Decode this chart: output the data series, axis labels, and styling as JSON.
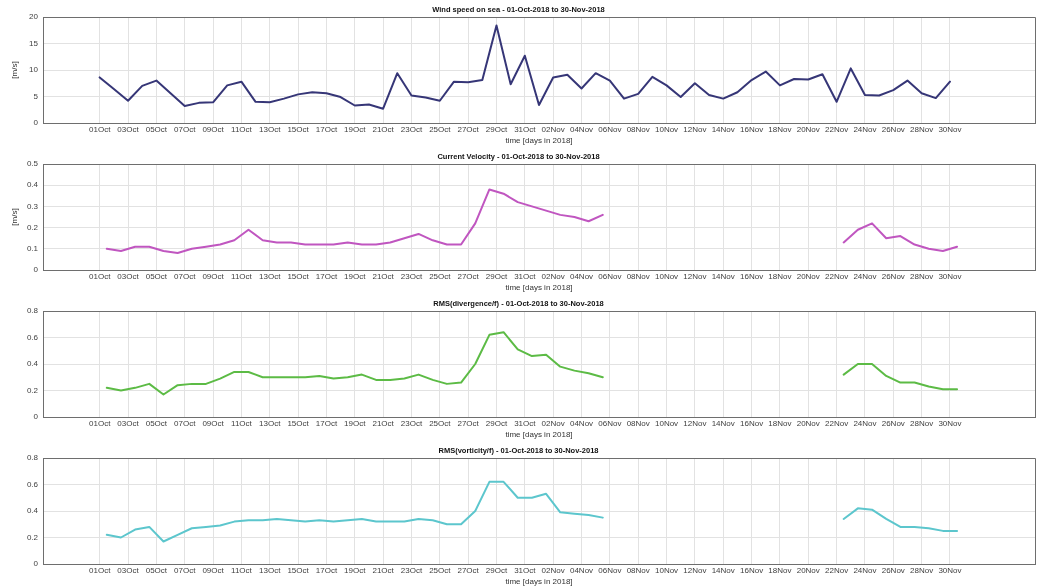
{
  "chart_data": [
    {
      "type": "line",
      "title": "Wind speed on sea - 01-Oct-2018 to 30-Nov-2018",
      "xlabel": "time [days in 2018]",
      "ylabel": "[m/s]",
      "grid": true,
      "x": [
        "2018-10-01",
        "2018-10-02",
        "2018-10-03",
        "2018-10-04",
        "2018-10-05",
        "2018-10-06",
        "2018-10-07",
        "2018-10-08",
        "2018-10-09",
        "2018-10-10",
        "2018-10-11",
        "2018-10-12",
        "2018-10-13",
        "2018-10-14",
        "2018-10-15",
        "2018-10-16",
        "2018-10-17",
        "2018-10-18",
        "2018-10-19",
        "2018-10-20",
        "2018-10-21",
        "2018-10-22",
        "2018-10-23",
        "2018-10-24",
        "2018-10-25",
        "2018-10-26",
        "2018-10-27",
        "2018-10-28",
        "2018-10-29",
        "2018-10-30",
        "2018-10-31",
        "2018-11-01",
        "2018-11-02",
        "2018-11-03",
        "2018-11-04",
        "2018-11-05",
        "2018-11-06",
        "2018-11-07",
        "2018-11-08",
        "2018-11-09",
        "2018-11-10",
        "2018-11-11",
        "2018-11-12",
        "2018-11-13",
        "2018-11-14",
        "2018-11-15",
        "2018-11-16",
        "2018-11-17",
        "2018-11-18",
        "2018-11-19",
        "2018-11-20",
        "2018-11-21",
        "2018-11-22",
        "2018-11-23",
        "2018-11-24",
        "2018-11-25",
        "2018-11-26",
        "2018-11-27",
        "2018-11-28",
        "2018-11-29",
        "2018-11-30"
      ],
      "series": [
        {
          "color": "#363677",
          "values": [
            8.6,
            6.4,
            4.2,
            7.0,
            8.0,
            5.6,
            3.2,
            3.8,
            3.9,
            7.1,
            7.8,
            4.0,
            3.9,
            4.6,
            5.4,
            5.8,
            5.6,
            4.9,
            3.3,
            3.5,
            2.7,
            9.4,
            5.2,
            4.8,
            4.2,
            7.8,
            7.7,
            8.1,
            18.4,
            7.3,
            12.7,
            3.4,
            8.6,
            9.1,
            6.5,
            9.4,
            8.0,
            4.6,
            5.5,
            8.7,
            7.1,
            4.9,
            7.5,
            5.3,
            4.6,
            5.8,
            8.1,
            9.7,
            7.1,
            8.3,
            8.2,
            9.2,
            4.0,
            10.3,
            5.3,
            5.2,
            6.2,
            8.0,
            5.6,
            4.7,
            7.8
          ]
        }
      ],
      "xlim": [
        "2018-09-27",
        "2018-12-06"
      ],
      "xticks": [
        {
          "value": "2018-10-01",
          "label": "01Oct"
        },
        {
          "value": "2018-10-03",
          "label": "03Oct"
        },
        {
          "value": "2018-10-05",
          "label": "05Oct"
        },
        {
          "value": "2018-10-07",
          "label": "07Oct"
        },
        {
          "value": "2018-10-09",
          "label": "09Oct"
        },
        {
          "value": "2018-10-11",
          "label": "11Oct"
        },
        {
          "value": "2018-10-13",
          "label": "13Oct"
        },
        {
          "value": "2018-10-15",
          "label": "15Oct"
        },
        {
          "value": "2018-10-17",
          "label": "17Oct"
        },
        {
          "value": "2018-10-19",
          "label": "19Oct"
        },
        {
          "value": "2018-10-21",
          "label": "21Oct"
        },
        {
          "value": "2018-10-23",
          "label": "23Oct"
        },
        {
          "value": "2018-10-25",
          "label": "25Oct"
        },
        {
          "value": "2018-10-27",
          "label": "27Oct"
        },
        {
          "value": "2018-10-29",
          "label": "29Oct"
        },
        {
          "value": "2018-10-31",
          "label": "31Oct"
        },
        {
          "value": "2018-11-02",
          "label": "02Nov"
        },
        {
          "value": "2018-11-04",
          "label": "04Nov"
        },
        {
          "value": "2018-11-06",
          "label": "06Nov"
        },
        {
          "value": "2018-11-08",
          "label": "08Nov"
        },
        {
          "value": "2018-11-10",
          "label": "10Nov"
        },
        {
          "value": "2018-11-12",
          "label": "12Nov"
        },
        {
          "value": "2018-11-14",
          "label": "14Nov"
        },
        {
          "value": "2018-11-16",
          "label": "16Nov"
        },
        {
          "value": "2018-11-18",
          "label": "18Nov"
        },
        {
          "value": "2018-11-20",
          "label": "20Nov"
        },
        {
          "value": "2018-11-22",
          "label": "22Nov"
        },
        {
          "value": "2018-11-24",
          "label": "24Nov"
        },
        {
          "value": "2018-11-26",
          "label": "26Nov"
        },
        {
          "value": "2018-11-28",
          "label": "28Nov"
        },
        {
          "value": "2018-11-30",
          "label": "30Nov"
        }
      ],
      "ylim": [
        0,
        20
      ],
      "yticks": [
        0,
        5,
        10,
        15,
        20
      ]
    },
    {
      "type": "line",
      "title": "Current Velocity - 01-Oct-2018 to 30-Nov-2018",
      "xlabel": "time [days in 2018]",
      "ylabel": "[m/s]",
      "grid": true,
      "x": [
        "2018-10-01T12:00",
        "2018-10-02T12:00",
        "2018-10-03T12:00",
        "2018-10-04T12:00",
        "2018-10-05T12:00",
        "2018-10-06T12:00",
        "2018-10-07T12:00",
        "2018-10-08T12:00",
        "2018-10-09T12:00",
        "2018-10-10T12:00",
        "2018-10-11T12:00",
        "2018-10-12T12:00",
        "2018-10-13T12:00",
        "2018-10-14T12:00",
        "2018-10-15T12:00",
        "2018-10-16T12:00",
        "2018-10-17T12:00",
        "2018-10-18T12:00",
        "2018-10-19T12:00",
        "2018-10-20T12:00",
        "2018-10-21T12:00",
        "2018-10-22T12:00",
        "2018-10-23T12:00",
        "2018-10-24T12:00",
        "2018-10-25T12:00",
        "2018-10-26T12:00",
        "2018-10-27T12:00",
        "2018-10-28T12:00",
        "2018-10-29T12:00",
        "2018-10-30T12:00",
        "2018-10-31T12:00",
        "2018-11-01T12:00",
        "2018-11-02T12:00",
        "2018-11-03T12:00",
        "2018-11-04T12:00",
        "2018-11-05T12:00",
        "2018-11-06T12:00",
        "2018-11-07T12:00",
        "2018-11-08T12:00",
        "2018-11-09T12:00",
        "2018-11-10T12:00",
        "2018-11-11T12:00",
        "2018-11-12T12:00",
        "2018-11-13T12:00",
        "2018-11-14T12:00",
        "2018-11-15T12:00",
        "2018-11-16T12:00",
        "2018-11-17T12:00",
        "2018-11-18T12:00",
        "2018-11-19T12:00",
        "2018-11-20T12:00",
        "2018-11-21T12:00",
        "2018-11-22T12:00",
        "2018-11-23T12:00",
        "2018-11-24T12:00",
        "2018-11-25T12:00",
        "2018-11-26T12:00",
        "2018-11-27T12:00",
        "2018-11-28T12:00",
        "2018-11-29T12:00",
        "2018-11-30T12:00"
      ],
      "series": [
        {
          "color": "#c056c0",
          "values": [
            0.1,
            0.09,
            0.11,
            0.11,
            0.09,
            0.08,
            0.1,
            0.11,
            0.12,
            0.14,
            0.19,
            0.14,
            0.13,
            0.13,
            0.12,
            0.12,
            0.12,
            0.13,
            0.12,
            0.12,
            0.13,
            0.15,
            0.17,
            0.14,
            0.12,
            0.12,
            0.22,
            0.38,
            0.36,
            0.32,
            0.3,
            0.28,
            0.26,
            0.25,
            0.23,
            0.26,
            null,
            null,
            null,
            null,
            null,
            null,
            null,
            null,
            null,
            null,
            null,
            null,
            null,
            null,
            null,
            null,
            0.13,
            0.19,
            0.22,
            0.15,
            0.16,
            0.12,
            0.1,
            0.09,
            0.11
          ]
        }
      ],
      "xlim": [
        "2018-09-27",
        "2018-12-06"
      ],
      "xticks": [
        {
          "value": "2018-10-01",
          "label": "01Oct"
        },
        {
          "value": "2018-10-03",
          "label": "03Oct"
        },
        {
          "value": "2018-10-05",
          "label": "05Oct"
        },
        {
          "value": "2018-10-07",
          "label": "07Oct"
        },
        {
          "value": "2018-10-09",
          "label": "09Oct"
        },
        {
          "value": "2018-10-11",
          "label": "11Oct"
        },
        {
          "value": "2018-10-13",
          "label": "13Oct"
        },
        {
          "value": "2018-10-15",
          "label": "15Oct"
        },
        {
          "value": "2018-10-17",
          "label": "17Oct"
        },
        {
          "value": "2018-10-19",
          "label": "19Oct"
        },
        {
          "value": "2018-10-21",
          "label": "21Oct"
        },
        {
          "value": "2018-10-23",
          "label": "23Oct"
        },
        {
          "value": "2018-10-25",
          "label": "25Oct"
        },
        {
          "value": "2018-10-27",
          "label": "27Oct"
        },
        {
          "value": "2018-10-29",
          "label": "29Oct"
        },
        {
          "value": "2018-10-31",
          "label": "31Oct"
        },
        {
          "value": "2018-11-02",
          "label": "02Nov"
        },
        {
          "value": "2018-11-04",
          "label": "04Nov"
        },
        {
          "value": "2018-11-06",
          "label": "06Nov"
        },
        {
          "value": "2018-11-08",
          "label": "08Nov"
        },
        {
          "value": "2018-11-10",
          "label": "10Nov"
        },
        {
          "value": "2018-11-12",
          "label": "12Nov"
        },
        {
          "value": "2018-11-14",
          "label": "14Nov"
        },
        {
          "value": "2018-11-16",
          "label": "16Nov"
        },
        {
          "value": "2018-11-18",
          "label": "18Nov"
        },
        {
          "value": "2018-11-20",
          "label": "20Nov"
        },
        {
          "value": "2018-11-22",
          "label": "22Nov"
        },
        {
          "value": "2018-11-24",
          "label": "24Nov"
        },
        {
          "value": "2018-11-26",
          "label": "26Nov"
        },
        {
          "value": "2018-11-28",
          "label": "28Nov"
        },
        {
          "value": "2018-11-30",
          "label": "30Nov"
        }
      ],
      "ylim": [
        0,
        0.5
      ],
      "yticks": [
        0,
        0.1,
        0.2,
        0.3,
        0.4,
        0.5
      ]
    },
    {
      "type": "line",
      "title": "RMS(divergence/f) - 01-Oct-2018 to 30-Nov-2018",
      "xlabel": "time [days in 2018]",
      "grid": true,
      "x": [
        "2018-10-01T12:00",
        "2018-10-02T12:00",
        "2018-10-03T12:00",
        "2018-10-04T12:00",
        "2018-10-05T12:00",
        "2018-10-06T12:00",
        "2018-10-07T12:00",
        "2018-10-08T12:00",
        "2018-10-09T12:00",
        "2018-10-10T12:00",
        "2018-10-11T12:00",
        "2018-10-12T12:00",
        "2018-10-13T12:00",
        "2018-10-14T12:00",
        "2018-10-15T12:00",
        "2018-10-16T12:00",
        "2018-10-17T12:00",
        "2018-10-18T12:00",
        "2018-10-19T12:00",
        "2018-10-20T12:00",
        "2018-10-21T12:00",
        "2018-10-22T12:00",
        "2018-10-23T12:00",
        "2018-10-24T12:00",
        "2018-10-25T12:00",
        "2018-10-26T12:00",
        "2018-10-27T12:00",
        "2018-10-28T12:00",
        "2018-10-29T12:00",
        "2018-10-30T12:00",
        "2018-10-31T12:00",
        "2018-11-01T12:00",
        "2018-11-02T12:00",
        "2018-11-03T12:00",
        "2018-11-04T12:00",
        "2018-11-05T12:00",
        "2018-11-06T12:00",
        "2018-11-07T12:00",
        "2018-11-08T12:00",
        "2018-11-09T12:00",
        "2018-11-10T12:00",
        "2018-11-11T12:00",
        "2018-11-12T12:00",
        "2018-11-13T12:00",
        "2018-11-14T12:00",
        "2018-11-15T12:00",
        "2018-11-16T12:00",
        "2018-11-17T12:00",
        "2018-11-18T12:00",
        "2018-11-19T12:00",
        "2018-11-20T12:00",
        "2018-11-21T12:00",
        "2018-11-22T12:00",
        "2018-11-23T12:00",
        "2018-11-24T12:00",
        "2018-11-25T12:00",
        "2018-11-26T12:00",
        "2018-11-27T12:00",
        "2018-11-28T12:00",
        "2018-11-29T12:00",
        "2018-11-30T12:00"
      ],
      "series": [
        {
          "color": "#5cbb45",
          "values": [
            0.22,
            0.2,
            0.22,
            0.25,
            0.17,
            0.24,
            0.25,
            0.25,
            0.29,
            0.34,
            0.34,
            0.3,
            0.3,
            0.3,
            0.3,
            0.31,
            0.29,
            0.3,
            0.32,
            0.28,
            0.28,
            0.29,
            0.32,
            0.28,
            0.25,
            0.26,
            0.4,
            0.62,
            0.64,
            0.51,
            0.46,
            0.47,
            0.38,
            0.35,
            0.33,
            0.3,
            null,
            null,
            null,
            null,
            null,
            null,
            null,
            null,
            null,
            null,
            null,
            null,
            null,
            null,
            null,
            null,
            0.32,
            0.4,
            0.4,
            0.31,
            0.26,
            0.26,
            0.23,
            0.21,
            0.21
          ]
        }
      ],
      "xlim": [
        "2018-09-27",
        "2018-12-06"
      ],
      "xticks": [
        {
          "value": "2018-10-01",
          "label": "01Oct"
        },
        {
          "value": "2018-10-03",
          "label": "03Oct"
        },
        {
          "value": "2018-10-05",
          "label": "05Oct"
        },
        {
          "value": "2018-10-07",
          "label": "07Oct"
        },
        {
          "value": "2018-10-09",
          "label": "09Oct"
        },
        {
          "value": "2018-10-11",
          "label": "11Oct"
        },
        {
          "value": "2018-10-13",
          "label": "13Oct"
        },
        {
          "value": "2018-10-15",
          "label": "15Oct"
        },
        {
          "value": "2018-10-17",
          "label": "17Oct"
        },
        {
          "value": "2018-10-19",
          "label": "19Oct"
        },
        {
          "value": "2018-10-21",
          "label": "21Oct"
        },
        {
          "value": "2018-10-23",
          "label": "23Oct"
        },
        {
          "value": "2018-10-25",
          "label": "25Oct"
        },
        {
          "value": "2018-10-27",
          "label": "27Oct"
        },
        {
          "value": "2018-10-29",
          "label": "29Oct"
        },
        {
          "value": "2018-10-31",
          "label": "31Oct"
        },
        {
          "value": "2018-11-02",
          "label": "02Nov"
        },
        {
          "value": "2018-11-04",
          "label": "04Nov"
        },
        {
          "value": "2018-11-06",
          "label": "06Nov"
        },
        {
          "value": "2018-11-08",
          "label": "08Nov"
        },
        {
          "value": "2018-11-10",
          "label": "10Nov"
        },
        {
          "value": "2018-11-12",
          "label": "12Nov"
        },
        {
          "value": "2018-11-14",
          "label": "14Nov"
        },
        {
          "value": "2018-11-16",
          "label": "16Nov"
        },
        {
          "value": "2018-11-18",
          "label": "18Nov"
        },
        {
          "value": "2018-11-20",
          "label": "20Nov"
        },
        {
          "value": "2018-11-22",
          "label": "22Nov"
        },
        {
          "value": "2018-11-24",
          "label": "24Nov"
        },
        {
          "value": "2018-11-26",
          "label": "26Nov"
        },
        {
          "value": "2018-11-28",
          "label": "28Nov"
        },
        {
          "value": "2018-11-30",
          "label": "30Nov"
        }
      ],
      "ylim": [
        0,
        0.8
      ],
      "yticks": [
        0,
        0.2,
        0.4,
        0.6,
        0.8
      ]
    },
    {
      "type": "line",
      "title": "RMS(vorticity/f) - 01-Oct-2018 to 30-Nov-2018",
      "xlabel": "time [days in 2018]",
      "grid": true,
      "x": [
        "2018-10-01T12:00",
        "2018-10-02T12:00",
        "2018-10-03T12:00",
        "2018-10-04T12:00",
        "2018-10-05T12:00",
        "2018-10-06T12:00",
        "2018-10-07T12:00",
        "2018-10-08T12:00",
        "2018-10-09T12:00",
        "2018-10-10T12:00",
        "2018-10-11T12:00",
        "2018-10-12T12:00",
        "2018-10-13T12:00",
        "2018-10-14T12:00",
        "2018-10-15T12:00",
        "2018-10-16T12:00",
        "2018-10-17T12:00",
        "2018-10-18T12:00",
        "2018-10-19T12:00",
        "2018-10-20T12:00",
        "2018-10-21T12:00",
        "2018-10-22T12:00",
        "2018-10-23T12:00",
        "2018-10-24T12:00",
        "2018-10-25T12:00",
        "2018-10-26T12:00",
        "2018-10-27T12:00",
        "2018-10-28T12:00",
        "2018-10-29T12:00",
        "2018-10-30T12:00",
        "2018-10-31T12:00",
        "2018-11-01T12:00",
        "2018-11-02T12:00",
        "2018-11-03T12:00",
        "2018-11-04T12:00",
        "2018-11-05T12:00",
        "2018-11-06T12:00",
        "2018-11-07T12:00",
        "2018-11-08T12:00",
        "2018-11-09T12:00",
        "2018-11-10T12:00",
        "2018-11-11T12:00",
        "2018-11-12T12:00",
        "2018-11-13T12:00",
        "2018-11-14T12:00",
        "2018-11-15T12:00",
        "2018-11-16T12:00",
        "2018-11-17T12:00",
        "2018-11-18T12:00",
        "2018-11-19T12:00",
        "2018-11-20T12:00",
        "2018-11-21T12:00",
        "2018-11-22T12:00",
        "2018-11-23T12:00",
        "2018-11-24T12:00",
        "2018-11-25T12:00",
        "2018-11-26T12:00",
        "2018-11-27T12:00",
        "2018-11-28T12:00",
        "2018-11-29T12:00",
        "2018-11-30T12:00"
      ],
      "series": [
        {
          "color": "#5cc6cd",
          "values": [
            0.22,
            0.2,
            0.26,
            0.28,
            0.17,
            0.22,
            0.27,
            0.28,
            0.29,
            0.32,
            0.33,
            0.33,
            0.34,
            0.33,
            0.32,
            0.33,
            0.32,
            0.33,
            0.34,
            0.32,
            0.32,
            0.32,
            0.34,
            0.33,
            0.3,
            0.3,
            0.4,
            0.62,
            0.62,
            0.5,
            0.5,
            0.53,
            0.39,
            0.38,
            0.37,
            0.35,
            null,
            null,
            null,
            null,
            null,
            null,
            null,
            null,
            null,
            null,
            null,
            null,
            null,
            null,
            null,
            null,
            0.34,
            0.42,
            0.41,
            0.34,
            0.28,
            0.28,
            0.27,
            0.25,
            0.25
          ]
        }
      ],
      "xlim": [
        "2018-09-27",
        "2018-12-06"
      ],
      "xticks": [
        {
          "value": "2018-10-01",
          "label": "01Oct"
        },
        {
          "value": "2018-10-03",
          "label": "03Oct"
        },
        {
          "value": "2018-10-05",
          "label": "05Oct"
        },
        {
          "value": "2018-10-07",
          "label": "07Oct"
        },
        {
          "value": "2018-10-09",
          "label": "09Oct"
        },
        {
          "value": "2018-10-11",
          "label": "11Oct"
        },
        {
          "value": "2018-10-13",
          "label": "13Oct"
        },
        {
          "value": "2018-10-15",
          "label": "15Oct"
        },
        {
          "value": "2018-10-17",
          "label": "17Oct"
        },
        {
          "value": "2018-10-19",
          "label": "19Oct"
        },
        {
          "value": "2018-10-21",
          "label": "21Oct"
        },
        {
          "value": "2018-10-23",
          "label": "23Oct"
        },
        {
          "value": "2018-10-25",
          "label": "25Oct"
        },
        {
          "value": "2018-10-27",
          "label": "27Oct"
        },
        {
          "value": "2018-10-29",
          "label": "29Oct"
        },
        {
          "value": "2018-10-31",
          "label": "31Oct"
        },
        {
          "value": "2018-11-02",
          "label": "02Nov"
        },
        {
          "value": "2018-11-04",
          "label": "04Nov"
        },
        {
          "value": "2018-11-06",
          "label": "06Nov"
        },
        {
          "value": "2018-11-08",
          "label": "08Nov"
        },
        {
          "value": "2018-11-10",
          "label": "10Nov"
        },
        {
          "value": "2018-11-12",
          "label": "12Nov"
        },
        {
          "value": "2018-11-14",
          "label": "14Nov"
        },
        {
          "value": "2018-11-16",
          "label": "16Nov"
        },
        {
          "value": "2018-11-18",
          "label": "18Nov"
        },
        {
          "value": "2018-11-20",
          "label": "20Nov"
        },
        {
          "value": "2018-11-22",
          "label": "22Nov"
        },
        {
          "value": "2018-11-24",
          "label": "24Nov"
        },
        {
          "value": "2018-11-26",
          "label": "26Nov"
        },
        {
          "value": "2018-11-28",
          "label": "28Nov"
        },
        {
          "value": "2018-11-30",
          "label": "30Nov"
        }
      ],
      "ylim": [
        0,
        0.8
      ],
      "yticks": [
        0,
        0.2,
        0.4,
        0.6,
        0.8
      ]
    }
  ]
}
